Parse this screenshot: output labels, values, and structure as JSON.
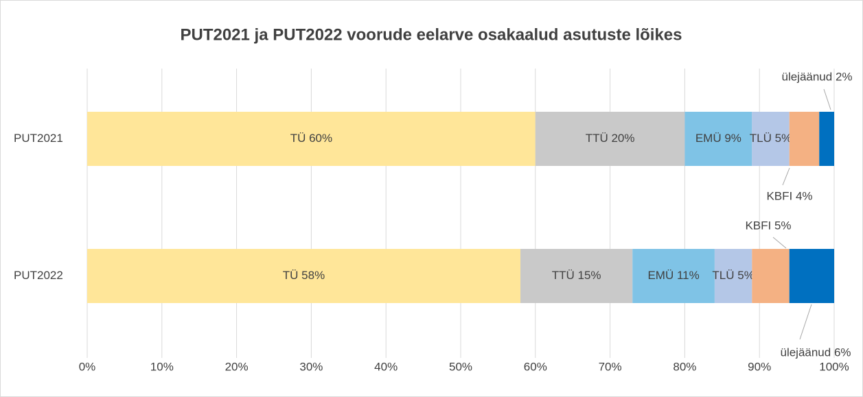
{
  "chart_data": {
    "type": "stacked_bar_horizontal",
    "title": "PUT2021 ja PUT2022 voorude eelarve osakaalud asutuste lõikes",
    "categories": [
      "PUT2021",
      "PUT2022"
    ],
    "series": [
      {
        "color": "#ffe699",
        "values": [
          60,
          58
        ],
        "value_labels": [
          "TÜ 60%",
          "TÜ 58%"
        ]
      },
      {
        "color": "#c9c9c9",
        "values": [
          20,
          15
        ],
        "value_labels": [
          "TTÜ 20%",
          "TTÜ 15%"
        ]
      },
      {
        "color": "#7fc3e6",
        "values": [
          9,
          11
        ],
        "value_labels": [
          "EMÜ 9%",
          "EMÜ 11%"
        ]
      },
      {
        "color": "#b4c7e7",
        "values": [
          5,
          5
        ],
        "value_labels": [
          "TLÜ 5%",
          "TLÜ 5%"
        ]
      },
      {
        "color": "#f4b183",
        "values": [
          4,
          5
        ],
        "value_labels": [
          "KBFI 4%",
          "KBFI 5%"
        ]
      },
      {
        "color": "#0070c0",
        "values": [
          2,
          6
        ],
        "value_labels": [
          "ülejäänud 2%",
          "ülejäänud 6%"
        ]
      }
    ],
    "xlim": [
      0,
      100
    ],
    "xticks": [
      {
        "value": 0,
        "label": "0%"
      },
      {
        "value": 10,
        "label": "10%"
      },
      {
        "value": 20,
        "label": "20%"
      },
      {
        "value": 30,
        "label": "30%"
      },
      {
        "value": 40,
        "label": "40%"
      },
      {
        "value": 50,
        "label": "50%"
      },
      {
        "value": 60,
        "label": "60%"
      },
      {
        "value": 70,
        "label": "70%"
      },
      {
        "value": 80,
        "label": "80%"
      },
      {
        "value": 90,
        "label": "90%"
      },
      {
        "value": 100,
        "label": "100%"
      }
    ],
    "grid": true
  }
}
